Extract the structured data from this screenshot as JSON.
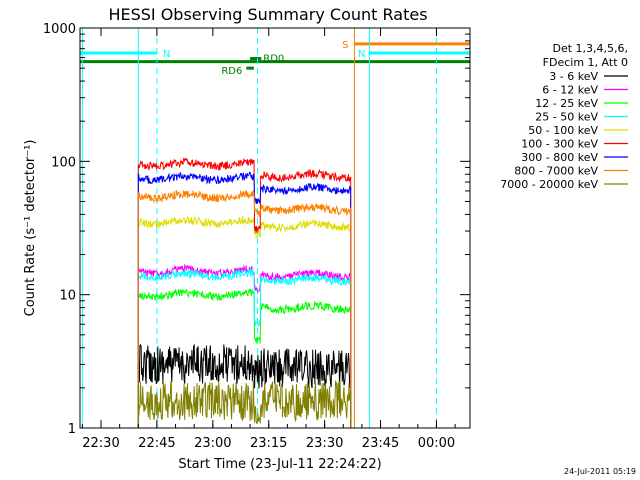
{
  "chart_data": {
    "type": "line",
    "title": "HESSI Observing Summary Count Rates",
    "xlabel": "Start Time (23-Jul-11 22:24:22)",
    "ylabel": "Count Rate (s⁻¹ detector⁻¹)",
    "y_scale": "log",
    "ylim": [
      1,
      1000
    ],
    "xlim": [
      "22:24:22",
      "00:09:00"
    ],
    "x_ticks": [
      "22:30",
      "22:45",
      "23:00",
      "23:15",
      "23:30",
      "23:45",
      "00:00"
    ],
    "y_ticks": [
      "1",
      "10",
      "100",
      "1000"
    ],
    "legend": {
      "position": "top-right",
      "header": [
        "Det 1,3,4,5,6,",
        "FDecim 1, Att 0"
      ]
    },
    "series": [
      {
        "name": "3 - 6 keV",
        "color": "#000000",
        "t_start": "22:40",
        "t_end": "23:37",
        "before": 3.0,
        "after": 2.8,
        "dip": 2.6
      },
      {
        "name": "6 - 12 keV",
        "color": "#ff00ff",
        "t_start": "22:40",
        "t_end": "23:37",
        "before": 15,
        "after": 14,
        "dip": 11
      },
      {
        "name": "12 - 25 keV",
        "color": "#00ff00",
        "t_start": "22:40",
        "t_end": "23:37",
        "before": 10,
        "after": 8,
        "dip": 4.5
      },
      {
        "name": "25 - 50 keV",
        "color": "#00ffff",
        "t_start": "22:40",
        "t_end": "23:37",
        "before": 14,
        "after": 13,
        "dip": 6
      },
      {
        "name": "50 - 100 keV",
        "color": "#dddd00",
        "t_start": "22:40",
        "t_end": "23:37",
        "before": 35,
        "after": 33,
        "dip": 28
      },
      {
        "name": "100 - 300 keV",
        "color": "#ff0000",
        "t_start": "22:40",
        "t_end": "23:37",
        "before": 95,
        "after": 78,
        "dip": 30
      },
      {
        "name": "300 - 800 keV",
        "color": "#0000ff",
        "t_start": "22:40",
        "t_end": "23:37",
        "before": 75,
        "after": 62,
        "dip": 50
      },
      {
        "name": "800 - 7000 keV",
        "color": "#ff8000",
        "t_start": "22:40",
        "t_end": "23:37",
        "before": 55,
        "after": 44,
        "dip": 40
      },
      {
        "name": "7000 - 20000 keV",
        "color": "#808000",
        "t_start": "22:40",
        "t_end": "23:37",
        "before": 1.6,
        "after": 1.6,
        "dip": 1.4
      }
    ],
    "flags": [
      {
        "label": "N",
        "color": "#00ffff",
        "start": "22:24:22",
        "end": "22:45",
        "level": 650
      },
      {
        "label": "N",
        "color": "#00ffff",
        "start": "23:42",
        "end": "00:09:00",
        "level": 650
      },
      {
        "label": "S",
        "color": "#ff8000",
        "start": "23:38",
        "end": "00:09:00",
        "level": 760
      },
      {
        "label": "",
        "color": "#008000",
        "start": "22:24:22",
        "end": "00:09:00",
        "level": 560
      },
      {
        "label": "RD0",
        "color": "#008000",
        "start": "23:10",
        "end": "23:13",
        "level": 590
      },
      {
        "label": "RD6",
        "color": "#008000",
        "start": "23:09",
        "end": "23:11",
        "level": 500
      }
    ],
    "vertical_lines": [
      {
        "time": "22:25:00",
        "color": "#00ffff",
        "style": "solid"
      },
      {
        "time": "22:40",
        "color": "#00ffff",
        "style": "solid"
      },
      {
        "time": "22:45",
        "color": "#00ffff",
        "style": "dashed"
      },
      {
        "time": "23:12",
        "color": "#00ffff",
        "style": "dashed"
      },
      {
        "time": "23:38",
        "color": "#ff8000",
        "style": "solid"
      },
      {
        "time": "23:42",
        "color": "#00ffff",
        "style": "solid"
      },
      {
        "time": "00:00",
        "color": "#00ffff",
        "style": "dashed"
      }
    ]
  },
  "footer": {
    "stamp": "24-Jul-2011 05:19"
  }
}
